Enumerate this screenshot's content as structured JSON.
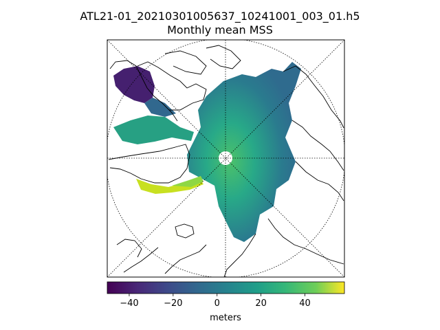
{
  "title": "ATL21-01_20210301005637_10241001_003_01.h5",
  "subtitle": "Monthly mean MSS",
  "colorbar": {
    "label": "meters",
    "ticks": [
      "−40",
      "−20",
      "0",
      "20",
      "40"
    ],
    "tick_values": [
      -40,
      -20,
      0,
      20,
      40
    ],
    "min": -50,
    "max": 58,
    "colormap": "viridis"
  },
  "map": {
    "projection": "north polar stereographic",
    "graticule": "dotted",
    "features": [
      "coastlines",
      "mean sea surface field"
    ]
  },
  "colors": {
    "viridis_low": "#440154",
    "viridis_mid": "#21918c",
    "viridis_high": "#fde725"
  }
}
